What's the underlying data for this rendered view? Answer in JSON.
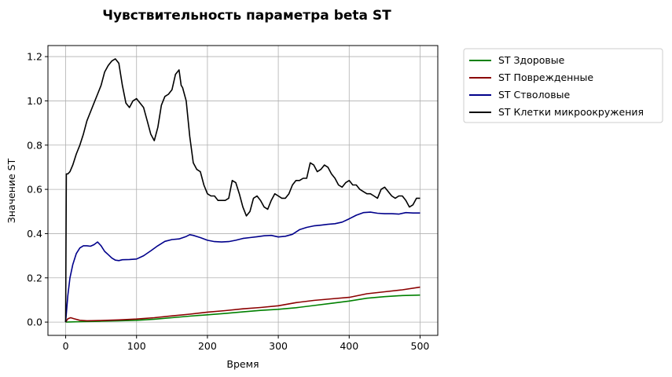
{
  "chart_data": {
    "type": "line",
    "title": "Чувствительность параметра beta ST",
    "xlabel": "Время",
    "ylabel": "Значение ST",
    "xlim": [
      -25,
      525
    ],
    "ylim": [
      -0.06,
      1.25
    ],
    "xticks": [
      "0",
      "100",
      "200",
      "300",
      "400",
      "500"
    ],
    "yticks": [
      "0.0",
      "0.2",
      "0.4",
      "0.6",
      "0.8",
      "1.0",
      "1.2"
    ],
    "grid": true,
    "legend_position": "outside-top-right",
    "series": [
      {
        "name": "ST Здоровые",
        "color": "#008000",
        "x": [
          0,
          25,
          50,
          75,
          100,
          125,
          150,
          175,
          200,
          225,
          250,
          275,
          300,
          325,
          350,
          375,
          400,
          425,
          450,
          475,
          500
        ],
        "y": [
          0.0,
          0.002,
          0.004,
          0.006,
          0.008,
          0.013,
          0.02,
          0.027,
          0.033,
          0.039,
          0.046,
          0.053,
          0.058,
          0.065,
          0.075,
          0.085,
          0.095,
          0.108,
          0.115,
          0.12,
          0.122
        ]
      },
      {
        "name": "ST Поврежденные",
        "color": "#8b0000",
        "x": [
          0,
          3,
          7,
          12,
          20,
          30,
          50,
          75,
          100,
          125,
          150,
          175,
          200,
          225,
          250,
          275,
          300,
          325,
          350,
          375,
          400,
          425,
          450,
          475,
          500
        ],
        "y": [
          0.0,
          0.015,
          0.02,
          0.015,
          0.008,
          0.006,
          0.007,
          0.01,
          0.014,
          0.02,
          0.028,
          0.036,
          0.045,
          0.052,
          0.06,
          0.066,
          0.074,
          0.088,
          0.098,
          0.105,
          0.112,
          0.128,
          0.137,
          0.146,
          0.158
        ]
      },
      {
        "name": "ST Стволовые",
        "color": "#00008b",
        "x": [
          0,
          3,
          6,
          10,
          15,
          20,
          25,
          30,
          35,
          40,
          45,
          50,
          55,
          60,
          65,
          70,
          75,
          80,
          90,
          100,
          110,
          120,
          130,
          140,
          150,
          160,
          170,
          175,
          180,
          190,
          200,
          210,
          220,
          230,
          240,
          250,
          260,
          270,
          280,
          290,
          300,
          310,
          320,
          330,
          340,
          350,
          360,
          370,
          380,
          390,
          400,
          410,
          420,
          430,
          440,
          450,
          460,
          470,
          480,
          490,
          500
        ],
        "y": [
          0.0,
          0.12,
          0.2,
          0.26,
          0.31,
          0.335,
          0.345,
          0.345,
          0.343,
          0.35,
          0.362,
          0.345,
          0.32,
          0.305,
          0.29,
          0.28,
          0.278,
          0.282,
          0.283,
          0.285,
          0.3,
          0.322,
          0.345,
          0.365,
          0.373,
          0.376,
          0.387,
          0.395,
          0.392,
          0.382,
          0.37,
          0.364,
          0.362,
          0.364,
          0.37,
          0.378,
          0.382,
          0.386,
          0.39,
          0.392,
          0.385,
          0.388,
          0.397,
          0.418,
          0.428,
          0.435,
          0.438,
          0.442,
          0.445,
          0.452,
          0.467,
          0.483,
          0.495,
          0.497,
          0.492,
          0.49,
          0.49,
          0.488,
          0.495,
          0.493,
          0.493
        ]
      },
      {
        "name": "ST Клетки микроокружения",
        "color": "#000000",
        "x": [
          0,
          1,
          3,
          6,
          10,
          15,
          20,
          25,
          30,
          35,
          40,
          45,
          50,
          55,
          60,
          65,
          70,
          75,
          80,
          85,
          90,
          95,
          100,
          105,
          110,
          115,
          120,
          125,
          130,
          135,
          140,
          145,
          150,
          155,
          160,
          163,
          165,
          170,
          175,
          180,
          185,
          190,
          195,
          200,
          205,
          210,
          215,
          220,
          225,
          230,
          235,
          240,
          245,
          250,
          255,
          260,
          265,
          270,
          275,
          280,
          285,
          290,
          295,
          300,
          305,
          310,
          315,
          320,
          325,
          330,
          335,
          340,
          345,
          350,
          355,
          360,
          365,
          370,
          375,
          380,
          385,
          390,
          395,
          400,
          405,
          410,
          415,
          420,
          425,
          430,
          435,
          440,
          445,
          450,
          455,
          460,
          465,
          470,
          475,
          480,
          485,
          490,
          495,
          500
        ],
        "y": [
          0.0,
          0.67,
          0.67,
          0.68,
          0.71,
          0.76,
          0.8,
          0.85,
          0.91,
          0.95,
          0.99,
          1.03,
          1.07,
          1.13,
          1.16,
          1.18,
          1.19,
          1.17,
          1.07,
          0.99,
          0.97,
          1.0,
          1.01,
          0.99,
          0.97,
          0.91,
          0.85,
          0.82,
          0.88,
          0.98,
          1.02,
          1.03,
          1.05,
          1.12,
          1.14,
          1.07,
          1.06,
          1.0,
          0.84,
          0.72,
          0.69,
          0.68,
          0.62,
          0.58,
          0.57,
          0.57,
          0.55,
          0.55,
          0.55,
          0.56,
          0.64,
          0.63,
          0.58,
          0.52,
          0.48,
          0.5,
          0.56,
          0.57,
          0.55,
          0.52,
          0.51,
          0.55,
          0.58,
          0.57,
          0.56,
          0.56,
          0.58,
          0.62,
          0.64,
          0.64,
          0.65,
          0.65,
          0.72,
          0.71,
          0.68,
          0.69,
          0.71,
          0.7,
          0.67,
          0.65,
          0.62,
          0.61,
          0.63,
          0.64,
          0.62,
          0.62,
          0.6,
          0.59,
          0.58,
          0.58,
          0.57,
          0.56,
          0.6,
          0.61,
          0.59,
          0.57,
          0.56,
          0.57,
          0.57,
          0.55,
          0.52,
          0.53,
          0.56,
          0.56
        ]
      }
    ]
  }
}
